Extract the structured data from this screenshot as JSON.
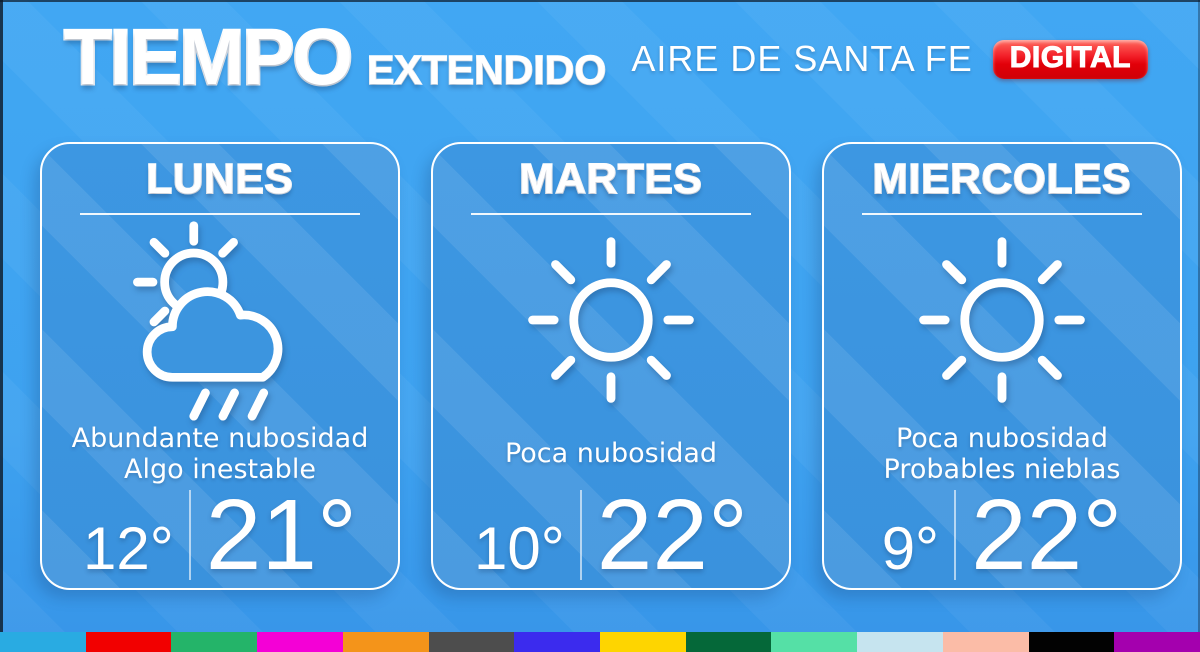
{
  "header": {
    "title": "TIEMPO",
    "subtitle": "EXTENDIDO",
    "brand": "AIRE DE SANTA FE",
    "badge": "DIGITAL"
  },
  "colors": {
    "background": "#3EA2F0",
    "card": "#3A93DE",
    "badge_red": "#E8000D",
    "text": "#FFFFFF"
  },
  "cards": [
    {
      "day": "LUNES",
      "icon": "sun-cloud-rain-icon",
      "desc_line1": "Abundante nubosidad",
      "desc_line2": "Algo inestable",
      "temp_min": "12°",
      "temp_max": "21°"
    },
    {
      "day": "MARTES",
      "icon": "sun-icon",
      "desc_line1": "Poca nubosidad",
      "desc_line2": "",
      "temp_min": "10°",
      "temp_max": "22°"
    },
    {
      "day": "MIERCOLES",
      "icon": "sun-icon",
      "desc_line1": "Poca nubosidad",
      "desc_line2": "Probables nieblas",
      "temp_min": "9°",
      "temp_max": "22°"
    }
  ],
  "footer_strip": [
    "#29ABE2",
    "#F20000",
    "#24B469",
    "#F400D6",
    "#F4941A",
    "#4D4D4D",
    "#3B2BEE",
    "#FED500",
    "#056839",
    "#55E0A6",
    "#C6E4EF",
    "#FBBCA7",
    "#020202",
    "#A400AE"
  ]
}
